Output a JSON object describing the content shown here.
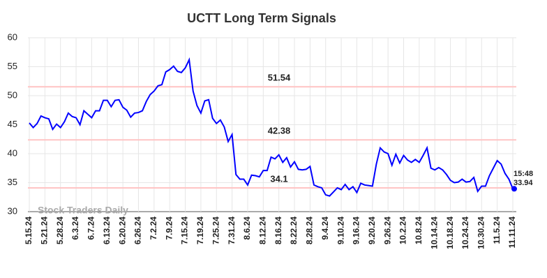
{
  "chart_data": {
    "type": "line",
    "title": "UCTT Long Term Signals",
    "categories": [
      "5.15.24",
      null,
      null,
      null,
      "5.21.24",
      null,
      null,
      null,
      "5.28.24",
      null,
      null,
      null,
      "6.3.24",
      null,
      null,
      null,
      "6.7.24",
      null,
      null,
      null,
      "6.13.24",
      null,
      null,
      null,
      "6.20.24",
      null,
      null,
      null,
      "6.26.24",
      null,
      null,
      null,
      "7.2.24",
      null,
      null,
      null,
      "7.9.24",
      null,
      null,
      null,
      "7.15.24",
      null,
      null,
      null,
      "7.19.24",
      null,
      null,
      null,
      "7.25.24",
      null,
      null,
      null,
      "7.31.24",
      null,
      null,
      null,
      "8.6.24",
      null,
      null,
      null,
      "8.12.24",
      null,
      null,
      null,
      "8.16.24",
      null,
      null,
      null,
      "8.22.24",
      null,
      null,
      null,
      "8.28.24",
      null,
      null,
      null,
      "9.4.24",
      null,
      null,
      null,
      "9.10.24",
      null,
      null,
      null,
      "9.16.24",
      null,
      null,
      null,
      "9.20.24",
      null,
      null,
      null,
      "9.26.24",
      null,
      null,
      null,
      "10.2.24",
      null,
      null,
      null,
      "10.8.24",
      null,
      null,
      null,
      "10.14.24",
      null,
      null,
      null,
      "10.18.24",
      null,
      null,
      null,
      "10.24.24",
      null,
      null,
      null,
      "10.30.24",
      null,
      null,
      null,
      "11.5.24",
      null,
      null,
      null,
      "11.11.24"
    ],
    "values": [
      45.3,
      44.5,
      45.2,
      46.5,
      46.2,
      46.0,
      44.2,
      45.1,
      44.5,
      45.5,
      47.0,
      46.4,
      46.2,
      45.0,
      47.4,
      46.8,
      46.2,
      47.4,
      47.4,
      49.2,
      49.2,
      48.1,
      49.2,
      49.3,
      48.0,
      47.5,
      46.3,
      47.0,
      47.1,
      47.4,
      49.0,
      50.2,
      50.8,
      51.7,
      51.9,
      54.1,
      54.5,
      55.1,
      54.2,
      54.0,
      54.8,
      56.2,
      50.8,
      48.3,
      47.0,
      49.1,
      49.3,
      46.1,
      45.2,
      45.8,
      44.6,
      42.1,
      43.3,
      36.4,
      35.6,
      35.6,
      34.6,
      36.3,
      36.2,
      36.0,
      37.1,
      37.1,
      39.4,
      39.1,
      39.8,
      38.5,
      39.3,
      37.7,
      38.6,
      37.3,
      37.2,
      37.3,
      37.8,
      34.6,
      34.3,
      34.1,
      32.9,
      32.7,
      33.4,
      34.1,
      33.8,
      34.7,
      33.8,
      34.3,
      33.3,
      34.9,
      34.6,
      34.5,
      34.4,
      38.2,
      41.0,
      40.3,
      40.0,
      38.0,
      39.9,
      38.4,
      39.7,
      38.9,
      38.5,
      39.0,
      38.5,
      39.7,
      41.0,
      37.5,
      37.2,
      37.6,
      37.2,
      36.4,
      35.4,
      35.0,
      35.1,
      35.6,
      35.1,
      35.2,
      35.9,
      33.5,
      34.4,
      34.4,
      36.2,
      37.5,
      38.8,
      38.2,
      36.6,
      35.6,
      33.94
    ],
    "color": "#0000ff",
    "ylim": [
      30,
      60
    ],
    "yticks": [
      30,
      35,
      40,
      45,
      50,
      55,
      60
    ],
    "grid": true,
    "hlines": [
      51.54,
      42.38,
      34.1
    ],
    "hline_color": "#ffc4c4",
    "hline_label_color": "#8b0000",
    "last_time": "15:48",
    "watermark": "Stock Traders Daily"
  }
}
